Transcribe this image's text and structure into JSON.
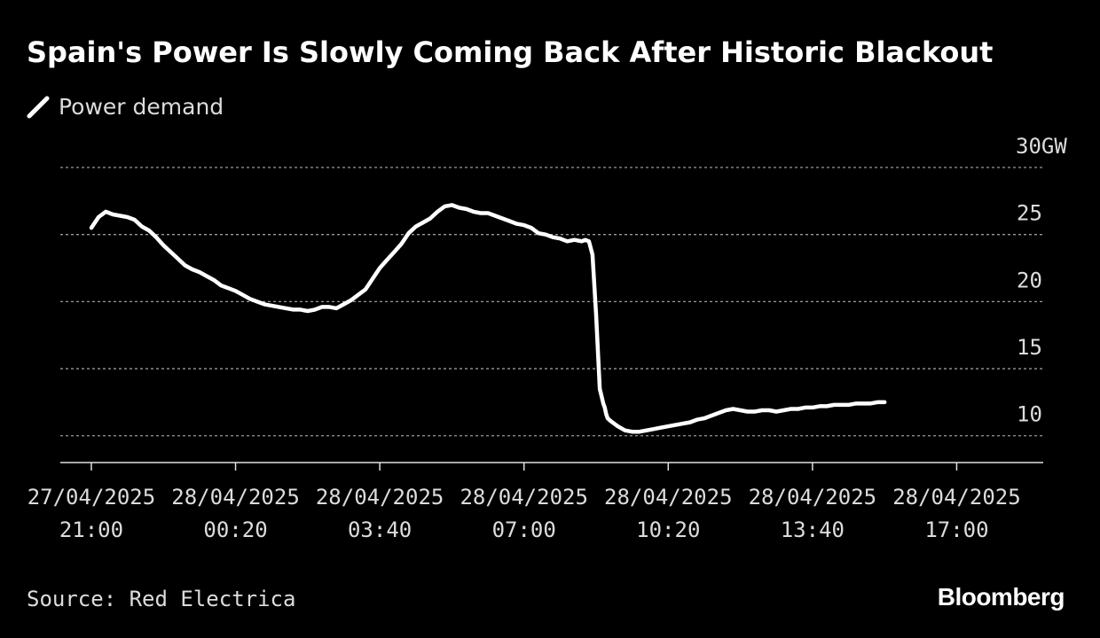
{
  "chart_data": {
    "type": "line",
    "title": "Spain's Power Is Slowly Coming Back After Historic Blackout",
    "legend": [
      "Power demand"
    ],
    "legend_position": "top-left",
    "series": [
      {
        "name": "Power demand",
        "color": "#ffffff",
        "x_minutes": [
          0,
          10,
          20,
          30,
          40,
          50,
          60,
          70,
          80,
          90,
          100,
          110,
          120,
          130,
          140,
          150,
          160,
          170,
          180,
          190,
          200,
          210,
          220,
          230,
          240,
          250,
          260,
          270,
          280,
          290,
          300,
          310,
          320,
          330,
          340,
          350,
          360,
          370,
          380,
          390,
          400,
          410,
          420,
          430,
          440,
          450,
          460,
          470,
          480,
          490,
          500,
          510,
          520,
          530,
          540,
          550,
          560,
          570,
          580,
          590,
          600,
          610,
          620,
          630,
          640,
          650,
          660,
          670,
          680,
          685,
          690,
          695,
          700,
          705,
          710,
          712,
          714,
          716,
          720,
          730,
          740,
          750,
          760,
          770,
          780,
          790,
          800,
          810,
          820,
          830,
          840,
          850,
          860,
          870,
          880,
          890,
          900,
          910,
          920,
          930,
          940,
          950,
          960,
          970,
          980,
          990,
          1000,
          1010,
          1020,
          1030,
          1040,
          1050,
          1060,
          1070,
          1080,
          1090,
          1100
        ],
        "values": [
          25.5,
          26.3,
          26.7,
          26.5,
          26.4,
          26.3,
          26.1,
          25.6,
          25.3,
          24.8,
          24.2,
          23.7,
          23.2,
          22.7,
          22.4,
          22.2,
          21.9,
          21.6,
          21.2,
          21.0,
          20.8,
          20.5,
          20.2,
          20.0,
          19.8,
          19.7,
          19.6,
          19.5,
          19.4,
          19.4,
          19.3,
          19.4,
          19.6,
          19.6,
          19.5,
          19.8,
          20.1,
          20.5,
          20.9,
          21.7,
          22.5,
          23.1,
          23.7,
          24.3,
          25.1,
          25.6,
          25.9,
          26.2,
          26.7,
          27.1,
          27.2,
          27.0,
          26.9,
          26.7,
          26.6,
          26.6,
          26.4,
          26.2,
          26.0,
          25.8,
          25.7,
          25.5,
          25.1,
          25.0,
          24.8,
          24.7,
          24.5,
          24.6,
          24.5,
          24.6,
          24.5,
          23.5,
          19.0,
          13.5,
          12.4,
          12.1,
          11.6,
          11.3,
          11.1,
          10.7,
          10.4,
          10.3,
          10.3,
          10.4,
          10.5,
          10.6,
          10.7,
          10.8,
          10.9,
          11.0,
          11.2,
          11.3,
          11.5,
          11.7,
          11.9,
          12.0,
          11.9,
          11.8,
          11.8,
          11.9,
          11.9,
          11.8,
          11.9,
          12.0,
          12.0,
          12.1,
          12.1,
          12.2,
          12.2,
          12.3,
          12.3,
          12.3,
          12.4,
          12.4,
          12.4,
          12.5,
          12.5
        ]
      }
    ],
    "x_tick_minutes": [
      0,
      200,
      400,
      600,
      800,
      1000,
      1200
    ],
    "x_tick_labels": [
      {
        "date": "27/04/2025",
        "time": "21:00"
      },
      {
        "date": "28/04/2025",
        "time": "00:20"
      },
      {
        "date": "28/04/2025",
        "time": "03:40"
      },
      {
        "date": "28/04/2025",
        "time": "07:00"
      },
      {
        "date": "28/04/2025",
        "time": "10:20"
      },
      {
        "date": "28/04/2025",
        "time": "13:40"
      },
      {
        "date": "28/04/2025",
        "time": "17:00"
      }
    ],
    "y_ticks": [
      10,
      15,
      20,
      25,
      30
    ],
    "y_tick_labels": [
      "10",
      "15",
      "20",
      "25",
      "30GW"
    ],
    "ylim": [
      8,
      30
    ],
    "xlim_minutes": [
      -43,
      1320
    ],
    "ylabel": "GW",
    "grid": true
  },
  "source": "Source: Red Electrica",
  "brand": "Bloomberg",
  "colors": {
    "background": "#000000",
    "line": "#ffffff",
    "grid": "#9a9a9a",
    "text": "#dcdcdc"
  }
}
